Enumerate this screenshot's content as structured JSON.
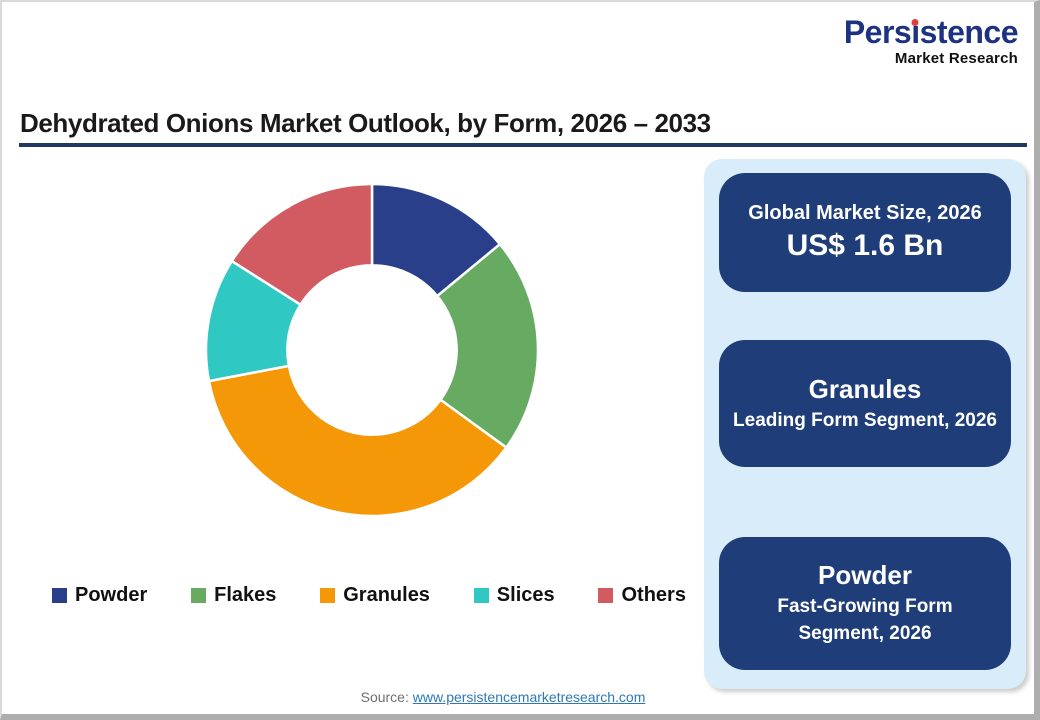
{
  "logo": {
    "brand": "Persistence",
    "brand_parts": [
      "Pers",
      "ı",
      "stence"
    ],
    "subtitle": "Market Research",
    "brand_color": "#1E3380",
    "dot_color": "#E23C3F"
  },
  "header": {
    "title": "Dehydrated Onions Market Outlook, by Form, 2026 – 2033",
    "underline_color": "#1F3864"
  },
  "chart_data": {
    "type": "pie",
    "subtype": "donut",
    "title": "Dehydrated Onions Market Outlook, by Form, 2026 – 2033",
    "categories": [
      "Powder",
      "Flakes",
      "Granules",
      "Slices",
      "Others"
    ],
    "values": [
      14,
      21,
      37,
      12,
      16
    ],
    "values_note": "percent share estimated from arc angles",
    "colors": [
      "#2A3F8A",
      "#67AB63",
      "#F59808",
      "#2FC8C3",
      "#D15B61"
    ],
    "start_angle_deg": 0,
    "clockwise": true,
    "inner_radius_ratio": 0.51,
    "legend_position": "bottom",
    "segment_separator_color": "#ffffff"
  },
  "panel": {
    "bg_color": "#D9ECF9",
    "card_color": "#1F3D78",
    "cards": [
      {
        "title": "Global Market Size, 2026",
        "value": "US$ 1.6 Bn"
      },
      {
        "title": "Granules",
        "subtitle": "Leading Form Segment, 2026"
      },
      {
        "title": "Powder",
        "subtitle": "Fast-Growing Form Segment, 2026"
      }
    ]
  },
  "footer": {
    "source_label": "Source:",
    "source_link": "www.persistencemarketresearch.com",
    "link_color": "#2E79B5"
  }
}
